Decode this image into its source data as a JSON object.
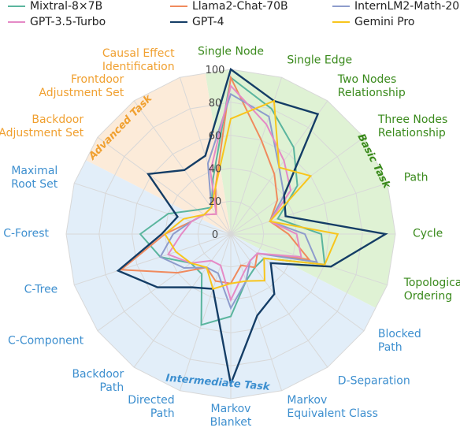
{
  "chart_data": {
    "type": "radar",
    "groups": [
      {
        "name": "Basic Task",
        "color": "#3a8a1c",
        "fill": "#dff2d4",
        "categories": [
          "Single Node",
          "Single Edge",
          "Two Nodes\nRelationship",
          "Three Nodes\nRelationship",
          "Path",
          "Cycle",
          "Topological\nOrdering"
        ]
      },
      {
        "name": "Intermediate Task",
        "color": "#3d8fcf",
        "fill": "#e2eef9",
        "categories": [
          "Blocked\nPath",
          "D-Separation",
          "Markov\nEquivalent Class",
          "Markov\nBlanket",
          "Directed\nPath",
          "Backdoor\nPath",
          "C-Component",
          "C-Tree",
          "C-Forest",
          "Maximal\nRoot Set"
        ]
      },
      {
        "name": "Advanced Task",
        "color": "#f0a030",
        "fill": "#fcebd9",
        "categories": [
          "Backdoor\nAdjustment Set",
          "Frontdoor\nAdjustment Set",
          "Causal Effect\nIdentification"
        ]
      }
    ],
    "ylim": [
      0,
      100
    ],
    "yticks": [
      0,
      20,
      40,
      60,
      80,
      100
    ],
    "series": [
      {
        "name": "Mixtral-8×7B",
        "color": "#5bb59e",
        "values": [
          95,
          80,
          65,
          50,
          30,
          55,
          60,
          25,
          25,
          30,
          50,
          58,
          30,
          30,
          45,
          55,
          40,
          25,
          20,
          35
        ]
      },
      {
        "name": "Llama2-Chat-70B",
        "color": "#f08a5d",
        "values": [
          95,
          60,
          45,
          35,
          25,
          35,
          50,
          20,
          25,
          20,
          30,
          30,
          25,
          40,
          70,
          40,
          25,
          20,
          15,
          30
        ]
      },
      {
        "name": "InternLM2-Math-20B",
        "color": "#8e9ccc",
        "values": [
          85,
          75,
          50,
          40,
          25,
          45,
          55,
          20,
          20,
          30,
          45,
          25,
          25,
          35,
          45,
          35,
          25,
          20,
          20,
          45
        ]
      },
      {
        "name": "GPT-3.5-Turbo",
        "color": "#e58ac6",
        "values": [
          90,
          70,
          55,
          45,
          25,
          40,
          45,
          20,
          20,
          25,
          40,
          20,
          20,
          30,
          40,
          30,
          25,
          20,
          15,
          40
        ]
      },
      {
        "name": "GPT-4",
        "color": "#143d66",
        "values": [
          100,
          85,
          90,
          40,
          35,
          94,
          64,
          30,
          45,
          52,
          91,
          35,
          40,
          55,
          72,
          42,
          34,
          62,
          48,
          50
        ]
      },
      {
        "name": "Gemini Pro",
        "color": "#f8c51c",
        "values": [
          70,
          85,
          50,
          60,
          25,
          65,
          60,
          25,
          35,
          30,
          30,
          35,
          25,
          30,
          35,
          40,
          30,
          20,
          20,
          30
        ]
      }
    ]
  }
}
